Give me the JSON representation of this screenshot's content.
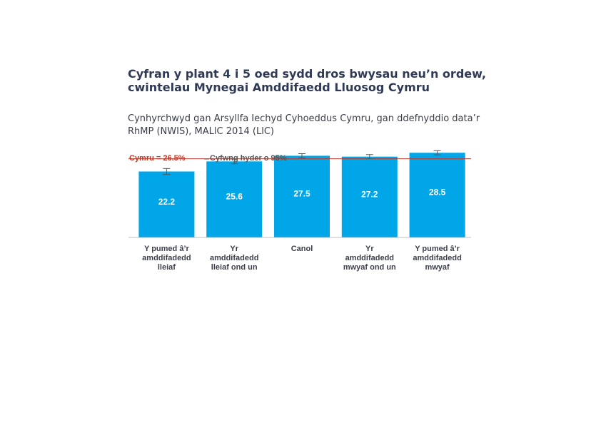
{
  "header": {
    "title": "Cyfran y plant 4 i 5 oed sydd dros bwysau neu’n ordew, cwintelau Mynegai Amddifaedd Lluosog Cymru",
    "subtitle": "Cynhyrchwyd gan Arsyllfa Iechyd Cyhoeddus Cymru, gan ddefnyddio data’r RhMP (NWIS), MALlC 2014 (LlC)"
  },
  "chart_data": {
    "type": "bar",
    "categories": [
      [
        "Y pumed â’r",
        "amddifadedd",
        "lleiaf"
      ],
      [
        "Yr",
        "amddifadedd",
        "lleiaf ond un"
      ],
      [
        "Canol"
      ],
      [
        "Yr",
        "amddifadedd",
        "mwyaf ond un"
      ],
      [
        "Y pumed â’r",
        "amddifadedd",
        "mwyaf"
      ]
    ],
    "values": [
      22.2,
      25.6,
      27.5,
      27.2,
      28.5
    ],
    "value_labels": [
      "22.2",
      "25.6",
      "27.5",
      "27.2",
      "28.5"
    ],
    "ci_low": [
      21.2,
      24.8,
      26.8,
      26.5,
      27.8
    ],
    "ci_high": [
      23.2,
      26.4,
      28.2,
      27.9,
      29.2
    ],
    "reference": {
      "label": "Cymru = 26.5%",
      "value": 26.5,
      "color": "#c0392b"
    },
    "legend_ci_label": "Cyfwng hyder o 95%",
    "ylim": [
      0,
      30
    ],
    "bar_color": "#00a6e8",
    "grid": false
  }
}
